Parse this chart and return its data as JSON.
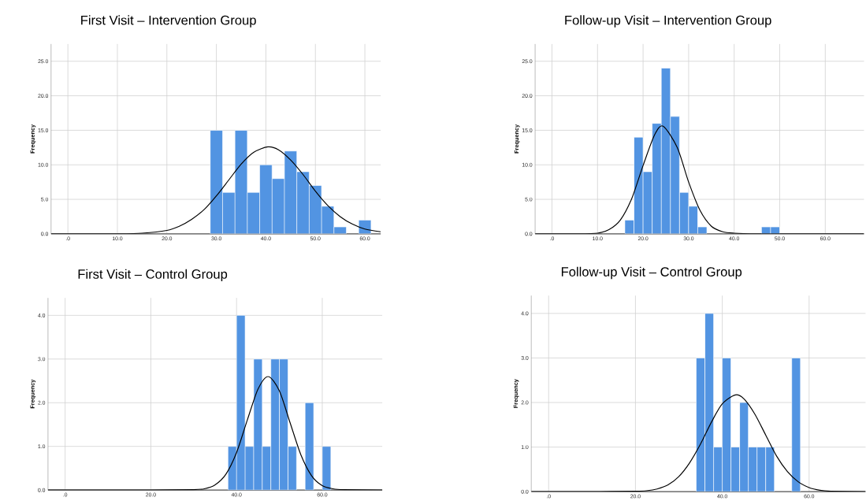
{
  "chart_data": [
    {
      "type": "histogram",
      "title": "First Visit – Intervention Group",
      "ylabel": "Frequency",
      "grid": true,
      "xlim": [
        -3.4,
        63.2
      ],
      "ylim": [
        0,
        27.5
      ],
      "xticks": [
        {
          "value": 0,
          "label": ".0"
        },
        {
          "value": 10,
          "label": "10.0"
        },
        {
          "value": 20,
          "label": "20.0"
        },
        {
          "value": 30,
          "label": "30.0"
        },
        {
          "value": 40,
          "label": "40.0"
        },
        {
          "value": 50,
          "label": "50.0"
        },
        {
          "value": 60,
          "label": "60.0"
        }
      ],
      "yticks": [
        {
          "value": 0,
          "label": "0.0"
        },
        {
          "value": 5,
          "label": "5.0"
        },
        {
          "value": 10,
          "label": "10.0"
        },
        {
          "value": 15,
          "label": "15.0"
        },
        {
          "value": 20,
          "label": "20.0"
        },
        {
          "value": 25,
          "label": "25.0"
        }
      ],
      "series": [
        {
          "type": "histogram",
          "color": "#5294e2",
          "bins": [
            28.75,
            31.25,
            33.75,
            36.25,
            38.75,
            41.25,
            43.75,
            46.25,
            48.75,
            51.25,
            53.75,
            56.25,
            58.75,
            61.25
          ],
          "values": [
            15,
            6,
            15,
            6,
            10,
            8,
            12,
            9,
            7,
            4,
            1,
            0,
            2
          ]
        },
        {
          "type": "line",
          "color": "#000000",
          "x": [
            -3.4,
            0,
            5,
            10,
            15,
            20,
            22.5,
            25,
            27.5,
            30,
            32.5,
            35,
            37.5,
            40.4,
            42.5,
            45,
            47.5,
            50,
            52.5,
            55,
            57.5,
            60,
            63.2
          ],
          "values": [
            0,
            0,
            0,
            0,
            0.1,
            0.5,
            1.1,
            2.1,
            3.5,
            5.5,
            7.8,
            10.1,
            11.8,
            12.6,
            12.2,
            10.7,
            8.6,
            6.2,
            4.1,
            2.5,
            1.4,
            0.7,
            0.3
          ]
        }
      ]
    },
    {
      "type": "histogram",
      "title": "Follow-up Visit – Intervention Group",
      "ylabel": "Frequency",
      "grid": true,
      "xlim": [
        -3.7,
        68.5
      ],
      "ylim": [
        0,
        27.5
      ],
      "xticks": [
        {
          "value": 0,
          "label": ".0"
        },
        {
          "value": 10,
          "label": "10.0"
        },
        {
          "value": 20,
          "label": "20.0"
        },
        {
          "value": 30,
          "label": "30.0"
        },
        {
          "value": 40,
          "label": "40.0"
        },
        {
          "value": 50,
          "label": "50.0"
        },
        {
          "value": 60,
          "label": "60.0"
        }
      ],
      "yticks": [
        {
          "value": 0,
          "label": "0.0"
        },
        {
          "value": 5,
          "label": "5.0"
        },
        {
          "value": 10,
          "label": "10.0"
        },
        {
          "value": 15,
          "label": "15.0"
        },
        {
          "value": 20,
          "label": "20.0"
        },
        {
          "value": 25,
          "label": "25.0"
        }
      ],
      "series": [
        {
          "type": "histogram",
          "color": "#5294e2",
          "bins": [
            16,
            18,
            20,
            22,
            24,
            26,
            28,
            30,
            32,
            34,
            36,
            38,
            40,
            42,
            44,
            46,
            48,
            50
          ],
          "values": [
            2,
            14,
            9,
            16,
            24,
            17,
            6,
            4,
            1,
            0,
            0,
            0,
            0,
            0,
            0,
            1,
            1
          ]
        },
        {
          "type": "line",
          "color": "#000000",
          "x": [
            -3.7,
            0,
            5,
            10,
            12.5,
            15,
            17.5,
            20,
            22.5,
            24.4,
            27.5,
            30,
            32.5,
            35,
            37.5,
            40,
            45,
            50,
            60,
            68.5
          ],
          "values": [
            0,
            0,
            0,
            0.1,
            0.6,
            2.0,
            5.1,
            9.9,
            14.3,
            15.6,
            12.5,
            7.5,
            3.4,
            1.1,
            0.3,
            0.1,
            0,
            0,
            0,
            0
          ]
        }
      ]
    },
    {
      "type": "histogram",
      "title": "First Visit – Control Group",
      "ylabel": "Frequency",
      "grid": true,
      "xlim": [
        -4,
        74
      ],
      "ylim": [
        0,
        4.4
      ],
      "xticks": [
        {
          "value": 0,
          "label": ".0"
        },
        {
          "value": 20,
          "label": "20.0"
        },
        {
          "value": 40,
          "label": "40.0"
        },
        {
          "value": 60,
          "label": "60.0"
        }
      ],
      "yticks": [
        {
          "value": 0,
          "label": "0.0"
        },
        {
          "value": 1,
          "label": "1.0"
        },
        {
          "value": 2,
          "label": "2.0"
        },
        {
          "value": 3,
          "label": "3.0"
        },
        {
          "value": 4,
          "label": "4.0"
        }
      ],
      "series": [
        {
          "type": "histogram",
          "color": "#5294e2",
          "bins": [
            38,
            40,
            42,
            44,
            46,
            48,
            50,
            52,
            54,
            56,
            58,
            60,
            62
          ],
          "values": [
            1,
            4,
            1,
            3,
            1,
            3,
            3,
            1,
            0,
            2,
            0,
            1
          ]
        },
        {
          "type": "line",
          "color": "#000000",
          "x": [
            -4,
            0,
            10,
            20,
            30,
            32.5,
            35,
            37.5,
            40,
            42.5,
            45,
            47.4,
            50,
            52.5,
            55,
            57.5,
            60,
            62.5,
            65,
            74
          ],
          "values": [
            0,
            0,
            0,
            0,
            0.01,
            0.03,
            0.12,
            0.36,
            0.86,
            1.6,
            2.31,
            2.6,
            2.27,
            1.54,
            0.81,
            0.33,
            0.1,
            0.03,
            0.01,
            0
          ]
        }
      ]
    },
    {
      "type": "histogram",
      "title": "Follow-up Visit – Control Group",
      "ylabel": "Frequency",
      "grid": true,
      "xlim": [
        -4,
        73
      ],
      "ylim": [
        0,
        4.4
      ],
      "xticks": [
        {
          "value": 0,
          "label": ".0"
        },
        {
          "value": 20,
          "label": "20.0"
        },
        {
          "value": 40,
          "label": "40.0"
        },
        {
          "value": 60,
          "label": "60.0"
        }
      ],
      "yticks": [
        {
          "value": 0,
          "label": "0.0"
        },
        {
          "value": 1,
          "label": "1.0"
        },
        {
          "value": 2,
          "label": "2.0"
        },
        {
          "value": 3,
          "label": "3.0"
        },
        {
          "value": 4,
          "label": "4.0"
        }
      ],
      "series": [
        {
          "type": "histogram",
          "color": "#5294e2",
          "bins": [
            34,
            36,
            38,
            40,
            42,
            44,
            46,
            48,
            50,
            52,
            54,
            56,
            58
          ],
          "values": [
            3,
            4,
            1,
            3,
            1,
            2,
            1,
            1,
            1,
            0,
            0,
            3
          ]
        },
        {
          "type": "line",
          "color": "#000000",
          "x": [
            -4,
            0,
            10,
            20,
            22.5,
            25,
            27.5,
            30,
            32.5,
            35,
            37.5,
            40,
            43,
            45,
            47.5,
            50,
            52.5,
            55,
            57.5,
            60,
            62.5,
            65,
            73
          ],
          "values": [
            0,
            0,
            0,
            0.01,
            0.02,
            0.06,
            0.15,
            0.34,
            0.65,
            1.07,
            1.56,
            1.97,
            2.17,
            2.08,
            1.74,
            1.27,
            0.8,
            0.45,
            0.22,
            0.09,
            0.03,
            0.01,
            0
          ]
        }
      ]
    }
  ]
}
